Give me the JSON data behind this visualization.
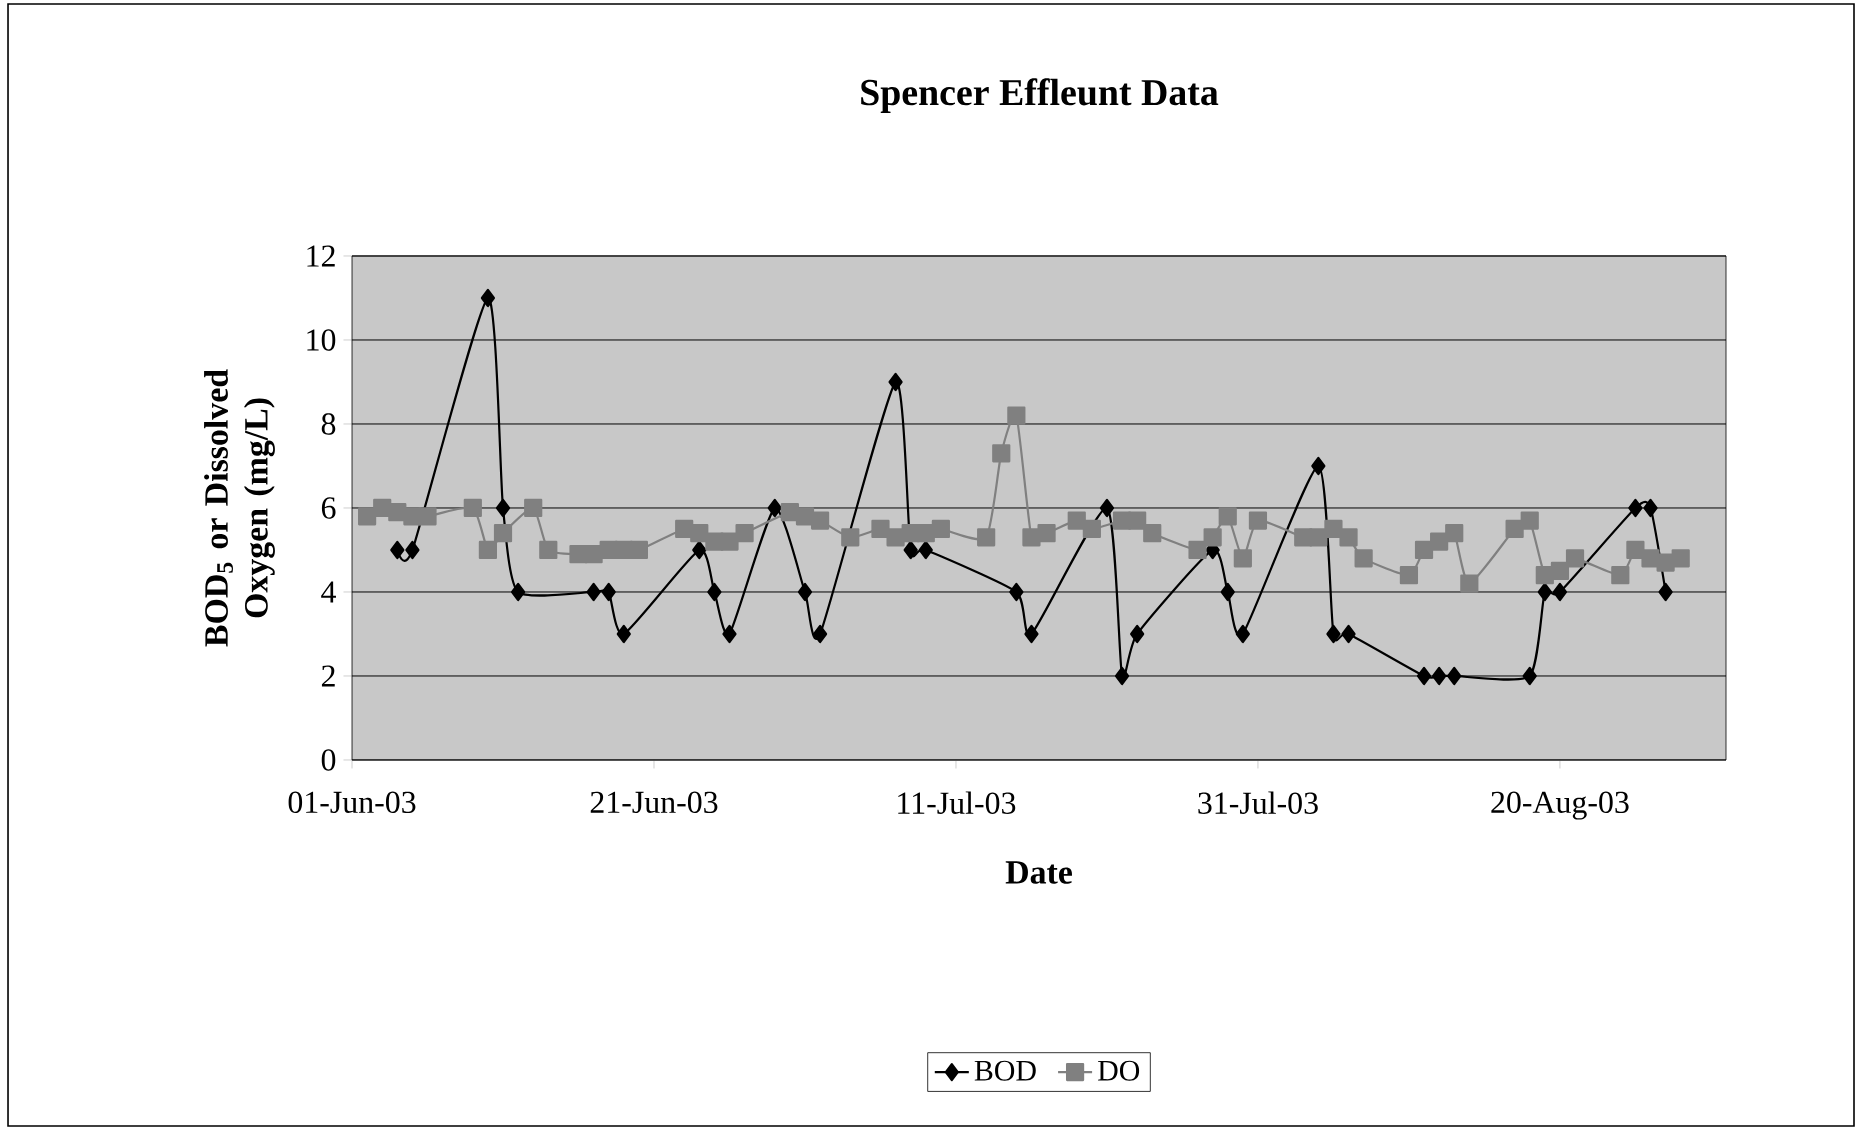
{
  "chart_data": {
    "type": "line",
    "title": "Spencer Effleunt Data",
    "xlabel": "Date",
    "ylabel": "BOD$_{5}$ or Dissolved Oxygen (mg/L)",
    "xlim": [
      "2003-06-01",
      "2003-08-31"
    ],
    "xticks": [
      {
        "value": "2003-06-01",
        "label": "01-Jun-03"
      },
      {
        "value": "2003-06-21",
        "label": "21-Jun-03"
      },
      {
        "value": "2003-07-11",
        "label": "11-Jul-03"
      },
      {
        "value": "2003-07-31",
        "label": "31-Jul-03"
      },
      {
        "value": "2003-08-20",
        "label": "20-Aug-03"
      }
    ],
    "ylim": [
      0,
      12
    ],
    "yticks": [
      0,
      2,
      4,
      6,
      8,
      10,
      12
    ],
    "grid": "y",
    "legend": "bottom",
    "series": [
      {
        "name": "BOD",
        "color": "#000000",
        "marker": "diamond",
        "x": [
          "2003-06-04",
          "2003-06-05",
          "2003-06-10",
          "2003-06-11",
          "2003-06-12",
          "2003-06-17",
          "2003-06-18",
          "2003-06-19",
          "2003-06-24",
          "2003-06-25",
          "2003-06-26",
          "2003-06-29",
          "2003-07-01",
          "2003-07-02",
          "2003-07-07",
          "2003-07-08",
          "2003-07-09",
          "2003-07-15",
          "2003-07-16",
          "2003-07-21",
          "2003-07-22",
          "2003-07-23",
          "2003-07-28",
          "2003-07-29",
          "2003-07-30",
          "2003-08-04",
          "2003-08-05",
          "2003-08-06",
          "2003-08-11",
          "2003-08-12",
          "2003-08-13",
          "2003-08-18",
          "2003-08-19",
          "2003-08-20",
          "2003-08-25",
          "2003-08-26",
          "2003-08-27"
        ],
        "values": [
          5,
          5,
          11,
          6,
          4,
          4,
          4,
          3,
          5,
          4,
          3,
          6,
          4,
          3,
          9,
          5,
          5,
          4,
          3,
          6,
          2,
          3,
          5,
          4,
          3,
          7,
          3,
          3,
          2,
          2,
          2,
          2,
          4,
          4,
          6,
          6,
          4
        ]
      },
      {
        "name": "DO",
        "color": "#808080",
        "marker": "square",
        "x": [
          "2003-06-02",
          "2003-06-03",
          "2003-06-04",
          "2003-06-05",
          "2003-06-06",
          "2003-06-09",
          "2003-06-10",
          "2003-06-11",
          "2003-06-13",
          "2003-06-14",
          "2003-06-16",
          "2003-06-17",
          "2003-06-18",
          "2003-06-19",
          "2003-06-20",
          "2003-06-23",
          "2003-06-24",
          "2003-06-25",
          "2003-06-26",
          "2003-06-27",
          "2003-06-30",
          "2003-07-01",
          "2003-07-02",
          "2003-07-04",
          "2003-07-06",
          "2003-07-07",
          "2003-07-08",
          "2003-07-09",
          "2003-07-10",
          "2003-07-13",
          "2003-07-14",
          "2003-07-15",
          "2003-07-16",
          "2003-07-17",
          "2003-07-19",
          "2003-07-20",
          "2003-07-22",
          "2003-07-23",
          "2003-07-24",
          "2003-07-27",
          "2003-07-28",
          "2003-07-29",
          "2003-07-30",
          "2003-07-31",
          "2003-08-03",
          "2003-08-04",
          "2003-08-05",
          "2003-08-06",
          "2003-08-07",
          "2003-08-10",
          "2003-08-11",
          "2003-08-12",
          "2003-08-13",
          "2003-08-14",
          "2003-08-17",
          "2003-08-18",
          "2003-08-19",
          "2003-08-20",
          "2003-08-21",
          "2003-08-24",
          "2003-08-25",
          "2003-08-26",
          "2003-08-27",
          "2003-08-28"
        ],
        "values": [
          5.8,
          6.0,
          5.9,
          5.8,
          5.8,
          6.0,
          5.0,
          5.4,
          6.0,
          5.0,
          4.9,
          4.9,
          5.0,
          5.0,
          5.0,
          5.5,
          5.4,
          5.2,
          5.2,
          5.4,
          5.9,
          5.8,
          5.7,
          5.3,
          5.5,
          5.3,
          5.4,
          5.4,
          5.5,
          5.3,
          7.3,
          8.2,
          5.3,
          5.4,
          5.7,
          5.5,
          5.7,
          5.7,
          5.4,
          5.0,
          5.3,
          5.8,
          4.8,
          5.7,
          5.3,
          5.3,
          5.5,
          5.3,
          4.8,
          4.4,
          5.0,
          5.2,
          5.4,
          4.2,
          5.5,
          5.7,
          4.4,
          4.5,
          4.8,
          4.4,
          5.0,
          4.8,
          4.7,
          4.8
        ]
      }
    ]
  }
}
